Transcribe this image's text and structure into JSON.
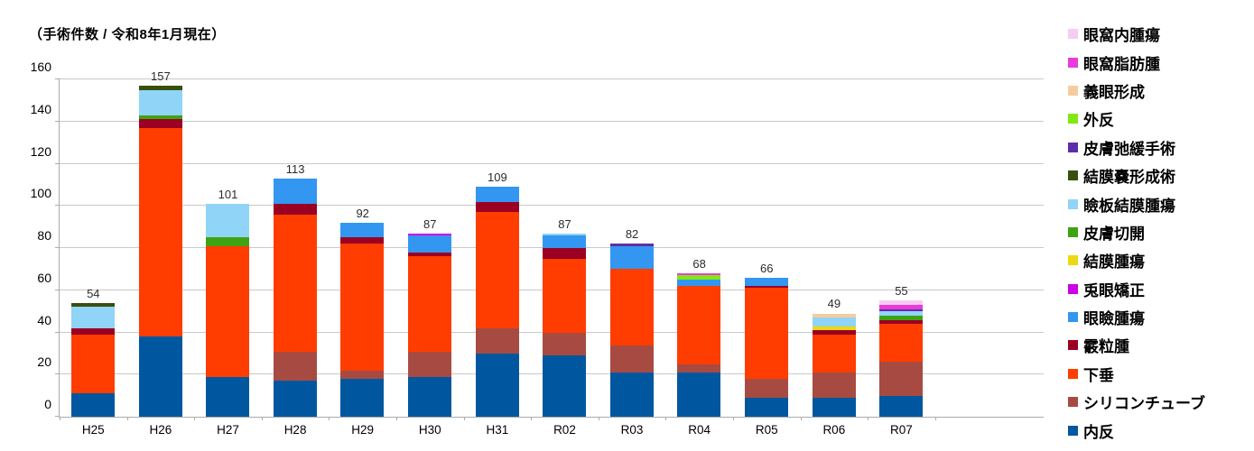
{
  "title": "（手術件数 / 令和8年1月現在）",
  "chart_data": {
    "type": "bar",
    "stacked": true,
    "title": "（手術件数 / 令和8年1月現在）",
    "categories": [
      "H25",
      "H26",
      "H27",
      "H28",
      "H29",
      "H30",
      "H31",
      "R02",
      "R03",
      "R04",
      "R05",
      "R06",
      "R07"
    ],
    "totals": [
      54,
      157,
      101,
      113,
      92,
      87,
      109,
      87,
      82,
      68,
      66,
      49,
      55
    ],
    "series": [
      {
        "name": "内反",
        "color": "#0057A0",
        "values": [
          11,
          38,
          19,
          17,
          18,
          19,
          30,
          29,
          21,
          21,
          9,
          9,
          10
        ]
      },
      {
        "name": "シリコンチューブ",
        "color": "#A74B42",
        "values": [
          0,
          0,
          0,
          14,
          4,
          12,
          12,
          11,
          13,
          4,
          9,
          12,
          16
        ]
      },
      {
        "name": "下垂",
        "color": "#FF3D00",
        "values": [
          28,
          99,
          62,
          65,
          60,
          45,
          55,
          35,
          36,
          37,
          43,
          18,
          18
        ]
      },
      {
        "name": "霰粒腫",
        "color": "#9B0023",
        "values": [
          3,
          4,
          0,
          5,
          3,
          2,
          5,
          5,
          0,
          0,
          1,
          2,
          2
        ]
      },
      {
        "name": "眼瞼腫瘍",
        "color": "#3396F0",
        "values": [
          0,
          0,
          0,
          12,
          7,
          8,
          7,
          6,
          11,
          3,
          4,
          0,
          0
        ]
      },
      {
        "name": "兎眼矯正",
        "color": "#CC00E6",
        "values": [
          0,
          0,
          0,
          0,
          0,
          1,
          0,
          0,
          0,
          0,
          0,
          0,
          0
        ]
      },
      {
        "name": "結膜腫瘍",
        "color": "#EDD813",
        "values": [
          0,
          0,
          0,
          0,
          0,
          0,
          0,
          0,
          0,
          0,
          0,
          2,
          0
        ]
      },
      {
        "name": "皮膚切開",
        "color": "#3FA213",
        "values": [
          0,
          2,
          4,
          0,
          0,
          0,
          0,
          0,
          0,
          0,
          0,
          0,
          2
        ]
      },
      {
        "name": "瞼板結膜腫瘍",
        "color": "#90D4F7",
        "values": [
          10,
          12,
          16,
          0,
          0,
          0,
          0,
          1,
          0,
          0,
          0,
          4,
          2
        ]
      },
      {
        "name": "結膜嚢形成術",
        "color": "#37500B",
        "values": [
          2,
          2,
          0,
          0,
          0,
          0,
          0,
          0,
          0,
          0,
          0,
          0,
          0
        ]
      },
      {
        "name": "皮膚弛緩手術",
        "color": "#5F2DA8",
        "values": [
          0,
          0,
          0,
          0,
          0,
          0,
          0,
          0,
          1,
          0,
          0,
          0,
          1
        ]
      },
      {
        "name": "外反",
        "color": "#83E713",
        "values": [
          0,
          0,
          0,
          0,
          0,
          0,
          0,
          0,
          0,
          2,
          0,
          0,
          0
        ]
      },
      {
        "name": "義眼形成",
        "color": "#F6CC9C",
        "values": [
          0,
          0,
          0,
          0,
          0,
          0,
          0,
          0,
          0,
          0,
          0,
          2,
          0
        ]
      },
      {
        "name": "眼窩脂肪腫",
        "color": "#E93BDC",
        "values": [
          0,
          0,
          0,
          0,
          0,
          0,
          0,
          0,
          0,
          1,
          0,
          0,
          2
        ]
      },
      {
        "name": "眼窩内腫瘍",
        "color": "#F7CCF2",
        "values": [
          0,
          0,
          0,
          0,
          0,
          0,
          0,
          0,
          0,
          0,
          0,
          0,
          2
        ]
      }
    ],
    "ylim": [
      0,
      160
    ],
    "y_tick_step": 20,
    "y_ticks": [
      0,
      20,
      40,
      60,
      80,
      100,
      120,
      140,
      160
    ],
    "grid": true,
    "legend_position": "right",
    "legend_order": "top of legend = top of stack (reverse of series order)"
  }
}
